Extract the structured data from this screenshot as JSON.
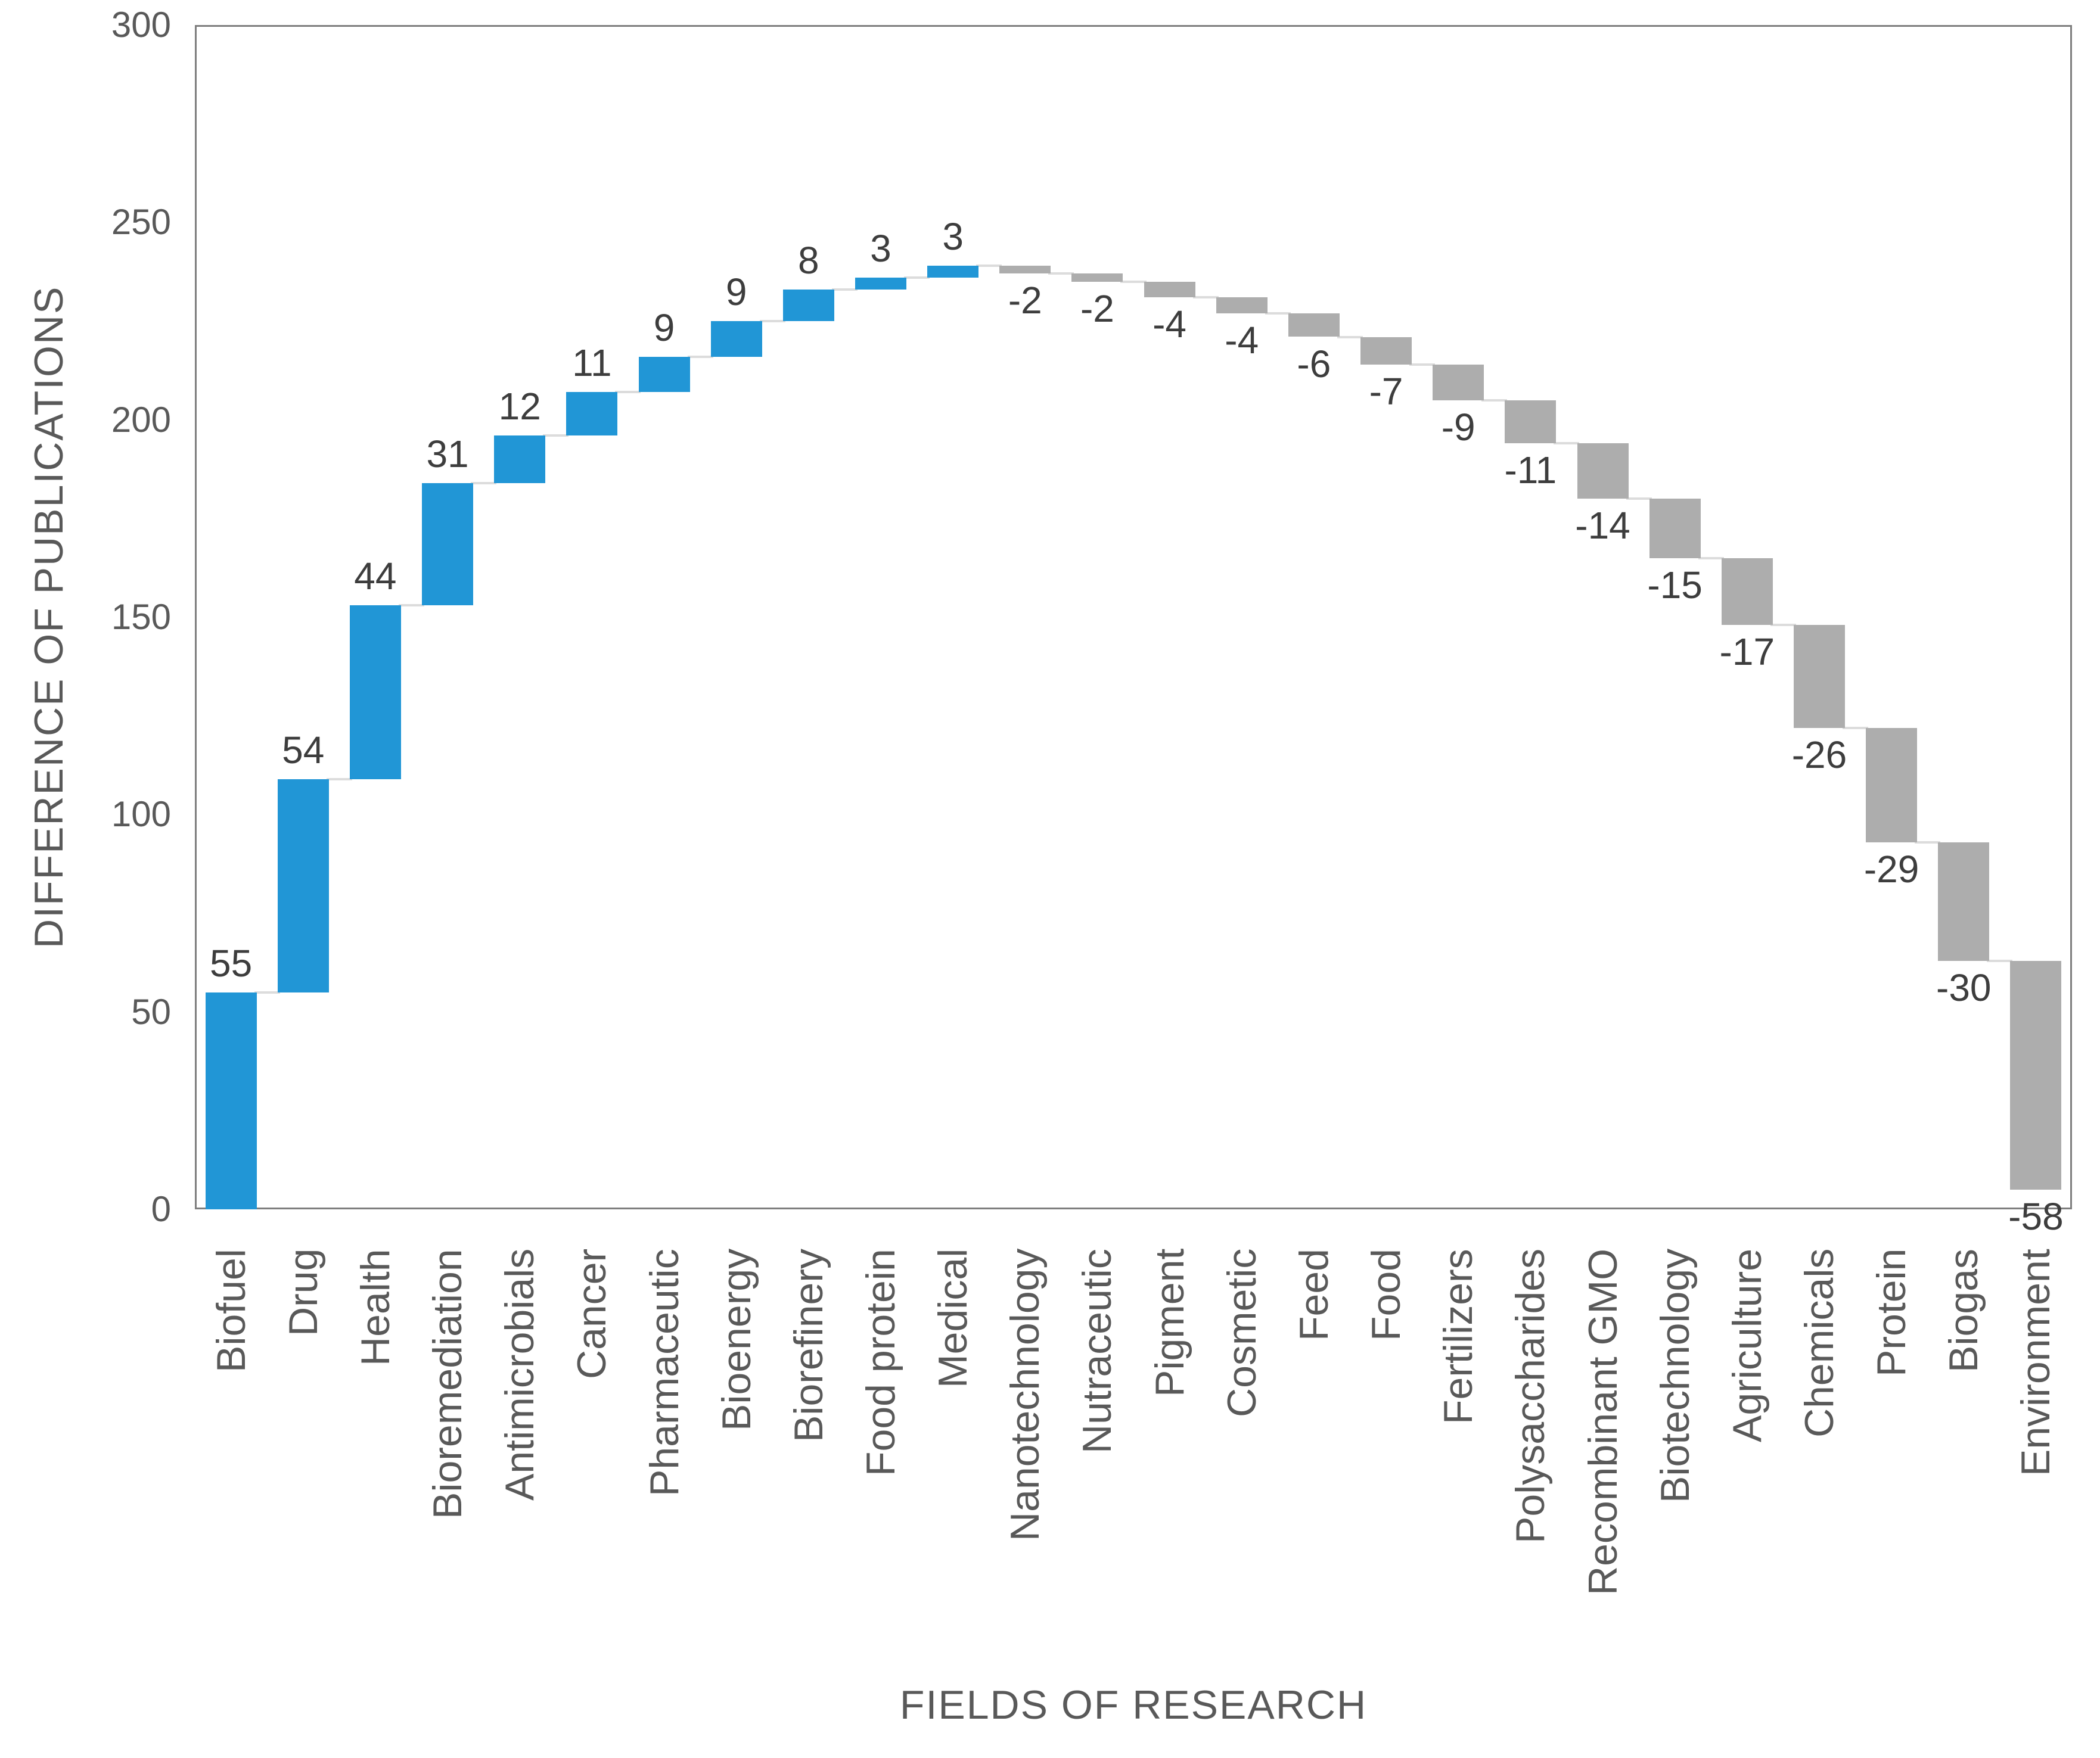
{
  "chart_data": {
    "type": "bar",
    "subtype": "waterfall",
    "title": "",
    "xlabel": "FIELDS OF RESEARCH",
    "ylabel": "DIFFERENCE OF PUBLICATIONS",
    "categories": [
      "Biofuel",
      "Drug",
      "Health",
      "Bioremediation",
      "Antimicrobials",
      "Cancer",
      "Pharmaceutic",
      "Bioenergy",
      "Biorefinery",
      "Food protein",
      "Medical",
      "Nanotechnology",
      "Nutraceutic",
      "Pigment",
      "Cosmetic",
      "Feed",
      "Food",
      "Fertilizers",
      "Polysaccharides",
      "Recombinant GMO",
      "Biotechnology",
      "Agriculture",
      "Chemicals",
      "Protein",
      "Biogas",
      "Environment"
    ],
    "values": [
      55,
      54,
      44,
      31,
      12,
      11,
      9,
      9,
      8,
      3,
      3,
      -2,
      -2,
      -4,
      -4,
      -6,
      -7,
      -9,
      -11,
      -14,
      -15,
      -17,
      -26,
      -29,
      -30,
      -58
    ],
    "data_labels": [
      "55",
      "54",
      "44",
      "31",
      "12",
      "11",
      "9",
      "9",
      "8",
      "3",
      "3",
      "-2",
      "-2",
      "-4",
      "-4",
      "-6",
      "-7",
      "-9",
      "-11",
      "-14",
      "-15",
      "-17",
      "-26",
      "-29",
      "-30",
      "-58"
    ],
    "y_ticks": [
      0,
      50,
      100,
      150,
      200,
      250,
      300
    ],
    "ylim": [
      0,
      300
    ],
    "grid": false,
    "legend_position": "none",
    "colors": {
      "increase_bar": "#2196d6",
      "decrease_bar": "#adadad",
      "connector": "#dcdcdc",
      "frame": "#7e7e7e",
      "axis_text": "#595959",
      "data_label_text": "#3d3d3d"
    }
  }
}
